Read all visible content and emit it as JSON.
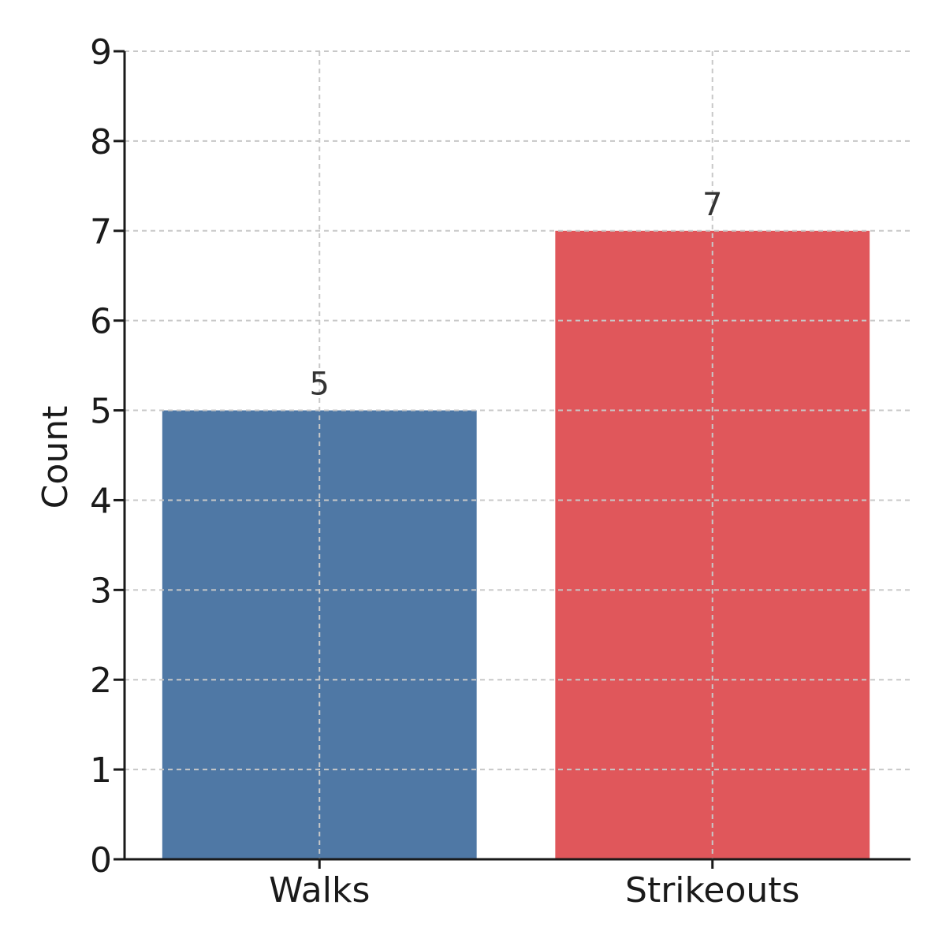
{
  "chart_data": {
    "type": "bar",
    "categories": [
      "Walks",
      "Strikeouts"
    ],
    "values": [
      5,
      7
    ],
    "data_labels": [
      "5",
      "7"
    ],
    "bar_colors": [
      "#4f78a5",
      "#e0575b"
    ],
    "ylabel": "Count",
    "xlabel": "",
    "title": "",
    "ylim": [
      0,
      9
    ],
    "yticks": [
      0,
      1,
      2,
      3,
      4,
      5,
      6,
      7,
      8,
      9
    ],
    "grid": true,
    "legend": "none"
  }
}
